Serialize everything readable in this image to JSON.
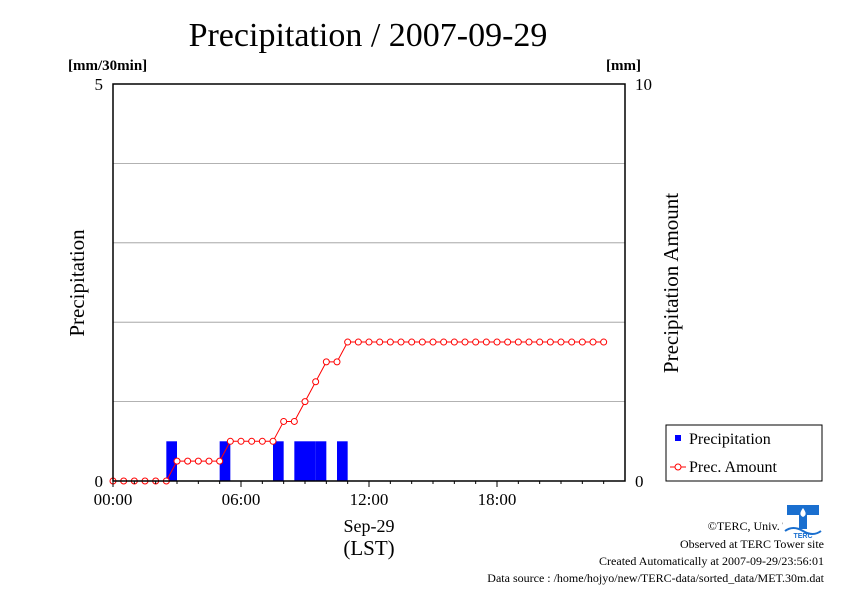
{
  "chart_data": {
    "type": "bar",
    "title": "Precipitation / 2007-09-29",
    "y_left": {
      "label": "Precipitation",
      "unit": "[mm/30min]",
      "range": [
        0,
        5
      ],
      "ticks": [
        "0",
        "5"
      ]
    },
    "y_right": {
      "label": "Precipitation Amount",
      "unit": "[mm]",
      "range": [
        0,
        10
      ],
      "ticks": [
        "0",
        "10"
      ]
    },
    "x": {
      "range_hours": [
        0,
        24
      ],
      "ticks": [
        "00:00",
        "06:00",
        "12:00",
        "18:00"
      ],
      "date_label": "Sep-29",
      "zone_label": "(LST)"
    },
    "grid": true,
    "legend_position": "bottom-right, outside plot",
    "series": [
      {
        "name": "Precipitation",
        "type": "bar",
        "color": "#0000ff",
        "times": [
          "02:30",
          "05:00",
          "07:30",
          "08:30",
          "09:00",
          "09:30",
          "10:30"
        ],
        "values": [
          0.5,
          0.5,
          0.5,
          0.5,
          0.5,
          0.5,
          0.5
        ]
      },
      {
        "name": "Prec. Amount",
        "type": "line",
        "color": "#ff0000",
        "times": [
          "00:00",
          "00:30",
          "01:00",
          "01:30",
          "02:00",
          "02:30",
          "03:00",
          "03:30",
          "04:00",
          "04:30",
          "05:00",
          "05:30",
          "06:00",
          "06:30",
          "07:00",
          "07:30",
          "08:00",
          "08:30",
          "09:00",
          "09:30",
          "10:00",
          "10:30",
          "11:00",
          "11:30",
          "12:00",
          "12:30",
          "13:00",
          "13:30",
          "14:00",
          "14:30",
          "15:00",
          "15:30",
          "16:00",
          "16:30",
          "17:00",
          "17:30",
          "18:00",
          "18:30",
          "19:00",
          "19:30",
          "20:00",
          "20:30",
          "21:00",
          "21:30",
          "22:00",
          "22:30",
          "23:00"
        ],
        "values": [
          0,
          0,
          0,
          0,
          0,
          0,
          0.5,
          0.5,
          0.5,
          0.5,
          0.5,
          1,
          1,
          1,
          1,
          1,
          1.5,
          1.5,
          2,
          2.5,
          3,
          3,
          3.5,
          3.5,
          3.5,
          3.5,
          3.5,
          3.5,
          3.5,
          3.5,
          3.5,
          3.5,
          3.5,
          3.5,
          3.5,
          3.5,
          3.5,
          3.5,
          3.5,
          3.5,
          3.5,
          3.5,
          3.5,
          3.5,
          3.5,
          3.5,
          3.5
        ]
      }
    ]
  },
  "footer": {
    "copyright": "©TERC, Univ. Tsukuba",
    "observed": "Observed at TERC Tower site",
    "created": "Created Automatically at 2007-09-29/23:56:01",
    "source": "Data source : /home/hojyo/new/TERC-data/sorted_data/MET.30m.dat"
  },
  "logo": {
    "text": "TERC",
    "color": "#1a6fcf"
  }
}
